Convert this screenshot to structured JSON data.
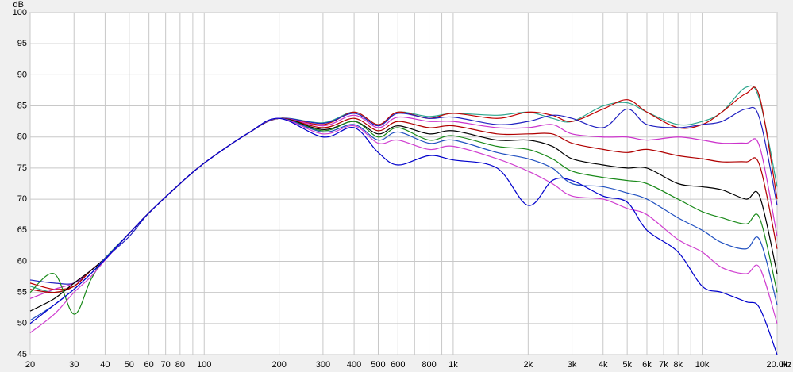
{
  "chart_data": {
    "type": "line",
    "x_label": "Hz",
    "y_label": "dB",
    "log_x": true,
    "grid": true,
    "xlim": [
      20,
      20000
    ],
    "ylim": [
      45,
      100
    ],
    "xticks": [
      20,
      30,
      40,
      50,
      60,
      70,
      80,
      100,
      200,
      300,
      400,
      500,
      600,
      800,
      {
        "value": 1000,
        "label": "1k"
      },
      {
        "value": 2000,
        "label": "2k"
      },
      {
        "value": 3000,
        "label": "3k"
      },
      {
        "value": 4000,
        "label": "4k"
      },
      {
        "value": 5000,
        "label": "5k"
      },
      {
        "value": 6000,
        "label": "6k"
      },
      {
        "value": 7000,
        "label": "7k"
      },
      {
        "value": 8000,
        "label": "8k"
      },
      {
        "value": 10000,
        "label": "10k"
      },
      {
        "value": 20000,
        "label": "20.0k"
      }
    ],
    "x_minor_grid": [
      90,
      700,
      900,
      9000
    ],
    "yticks": [
      45,
      50,
      55,
      60,
      65,
      70,
      75,
      80,
      85,
      90,
      95,
      100
    ],
    "x": [
      20,
      25,
      30,
      35,
      40,
      50,
      60,
      80,
      100,
      150,
      200,
      300,
      400,
      500,
      600,
      800,
      1000,
      1500,
      2000,
      2500,
      3000,
      4000,
      5000,
      6000,
      8000,
      10000,
      12000,
      15000,
      17000,
      20000
    ],
    "series": [
      {
        "color": "#2ca58d",
        "values": [
          56,
          55,
          56,
          58.5,
          60.5,
          64.5,
          67.8,
          72.5,
          75.8,
          80.6,
          83,
          82.3,
          84,
          82,
          84,
          83.3,
          83.8,
          83.5,
          84,
          83,
          82.5,
          85,
          85.5,
          84,
          82,
          82.5,
          84,
          88,
          86,
          72
        ]
      },
      {
        "color": "#c00000",
        "values": [
          56.5,
          55.5,
          56,
          58.5,
          60.5,
          64.5,
          67.8,
          72.5,
          75.8,
          80.6,
          83,
          82,
          84,
          82,
          84,
          83,
          83.8,
          83,
          84,
          83.5,
          82.5,
          84.5,
          86,
          84,
          81.5,
          82,
          84,
          87,
          86.5,
          70
        ]
      },
      {
        "color": "#2020c0",
        "values": [
          57,
          56.5,
          56.5,
          58.5,
          60.5,
          64,
          67.8,
          72.5,
          75.8,
          80.6,
          83,
          82.2,
          83.8,
          81.8,
          83.8,
          83,
          83.2,
          82,
          82.5,
          83.5,
          83,
          81.5,
          84.5,
          82,
          81.5,
          82,
          82.5,
          84.5,
          83,
          69
        ]
      },
      {
        "color": "#cc33cc",
        "values": [
          54,
          55.5,
          56.5,
          58.5,
          60.5,
          64.5,
          67.8,
          72.5,
          75.8,
          80.6,
          83,
          81.8,
          83.5,
          81.5,
          83.2,
          82.5,
          82.5,
          81.5,
          81.5,
          82,
          80.5,
          80,
          80,
          79.5,
          80,
          79.5,
          79,
          79,
          78.5,
          64
        ]
      },
      {
        "color": "#b00000",
        "values": [
          55.5,
          55,
          56,
          58.5,
          60.5,
          64.5,
          67.8,
          72.5,
          75.8,
          80.6,
          83,
          81.5,
          83,
          81,
          82.5,
          81.5,
          81.8,
          80.5,
          80.5,
          80.5,
          79,
          78,
          77.5,
          78,
          77,
          76.5,
          76,
          76,
          75.5,
          62
        ]
      },
      {
        "color": "#000000",
        "values": [
          52,
          54,
          56.5,
          58.5,
          60.5,
          64.5,
          67.8,
          72.5,
          75.8,
          80.6,
          83,
          81.2,
          82.5,
          80.5,
          81.8,
          80.5,
          81,
          79.5,
          79.5,
          78.5,
          76.5,
          75.5,
          75,
          75,
          72.5,
          72,
          71.5,
          70,
          70.5,
          58
        ]
      },
      {
        "color": "#1a8a1a",
        "values": [
          55,
          58,
          51.5,
          57,
          60.5,
          64.5,
          67.8,
          72.5,
          75.8,
          80.6,
          83,
          81,
          82.5,
          80,
          81.5,
          79.5,
          80.2,
          78.5,
          78,
          76.5,
          74.5,
          73.5,
          73,
          72.5,
          70,
          68,
          67,
          66,
          67,
          55
        ]
      },
      {
        "color": "#2050c0",
        "values": [
          50.5,
          53,
          55.5,
          58,
          60.5,
          64.5,
          67.8,
          72.5,
          75.8,
          80.6,
          83,
          80.8,
          82,
          79.5,
          80.8,
          79,
          79.5,
          77.5,
          76.5,
          75,
          72.5,
          72,
          71,
          70,
          67,
          65,
          63,
          62,
          63.5,
          53
        ]
      },
      {
        "color": "#d040d0",
        "values": [
          48.5,
          51.5,
          55,
          57.5,
          60.2,
          64.5,
          67.8,
          72.5,
          75.8,
          80.6,
          83,
          80.5,
          81.8,
          79,
          79.5,
          78,
          78.5,
          76.5,
          74.5,
          72.5,
          70.5,
          70,
          68.5,
          67.5,
          63.5,
          61.5,
          59,
          58,
          59,
          50
        ]
      },
      {
        "color": "#0000cc",
        "values": [
          50,
          53,
          55.5,
          58,
          60.3,
          64.5,
          67.8,
          72.5,
          75.8,
          80.6,
          83,
          80,
          81.5,
          77.5,
          75.5,
          77,
          76.3,
          75,
          69,
          73,
          73,
          70.5,
          69.5,
          65,
          61.5,
          56,
          55,
          53.5,
          52.5,
          45
        ]
      }
    ]
  }
}
